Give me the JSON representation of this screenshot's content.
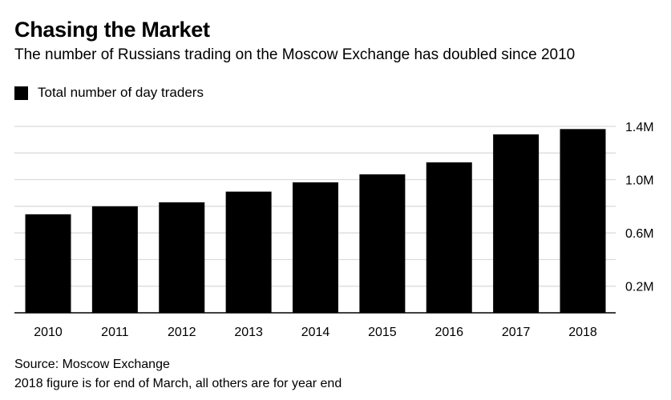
{
  "chart_data": {
    "type": "bar",
    "title": "Chasing the Market",
    "subtitle": "The number of Russians trading on the Moscow Exchange has doubled since 2010",
    "legend": [
      "Total number of day traders"
    ],
    "categories": [
      "2010",
      "2011",
      "2012",
      "2013",
      "2014",
      "2015",
      "2016",
      "2017",
      "2018"
    ],
    "series": [
      {
        "name": "Total number of day traders",
        "values": [
          0.74,
          0.8,
          0.83,
          0.91,
          0.98,
          1.04,
          1.13,
          1.34,
          1.38
        ]
      }
    ],
    "unit": "millions",
    "ylim": [
      0,
      1.42
    ],
    "yticks": [
      0.2,
      0.6,
      1.0,
      1.4
    ],
    "ytick_labels": [
      "0.2M",
      "0.6M",
      "1.0M",
      "1.4M"
    ],
    "gridlines": [
      0.2,
      0.4,
      0.6,
      0.8,
      1.0,
      1.2,
      1.4
    ],
    "grid": true,
    "yaxis_position": "right",
    "legend_position": "top-left",
    "bar_color": "#000000",
    "xlabel": "",
    "ylabel": ""
  },
  "footer": {
    "source": "Source: Moscow Exchange",
    "note": "2018 figure is for end of March, all others are for year end"
  }
}
